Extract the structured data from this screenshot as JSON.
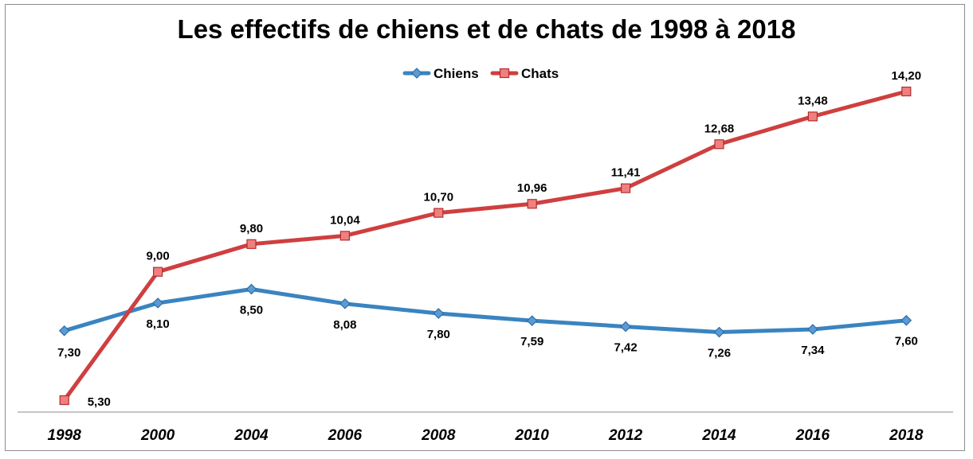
{
  "chart_data": {
    "type": "line",
    "title": "Les effectifs de chiens et de chats de 1998 à 2018",
    "categories": [
      "1998",
      "2000",
      "2004",
      "2006",
      "2008",
      "2010",
      "2012",
      "2014",
      "2016",
      "2018"
    ],
    "series": [
      {
        "name": "Chiens",
        "color": "#3a84c0",
        "marker": "diamond",
        "values": [
          7.3,
          8.1,
          8.5,
          8.08,
          7.8,
          7.59,
          7.42,
          7.26,
          7.34,
          7.6
        ],
        "labels": [
          "7,30",
          "8,10",
          "8,50",
          "8,08",
          "7,80",
          "7,59",
          "7,42",
          "7,26",
          "7,34",
          "7,60"
        ]
      },
      {
        "name": "Chats",
        "color": "#cf3f3f",
        "marker": "square",
        "values": [
          5.3,
          9.0,
          9.8,
          10.04,
          10.7,
          10.96,
          11.41,
          12.68,
          13.48,
          14.2
        ],
        "labels": [
          "5,30",
          "9,00",
          "9,80",
          "10,04",
          "10,70",
          "10,96",
          "11,41",
          "12,68",
          "13,48",
          "14,20"
        ]
      }
    ],
    "legend_position": "top-center",
    "grid": false
  }
}
